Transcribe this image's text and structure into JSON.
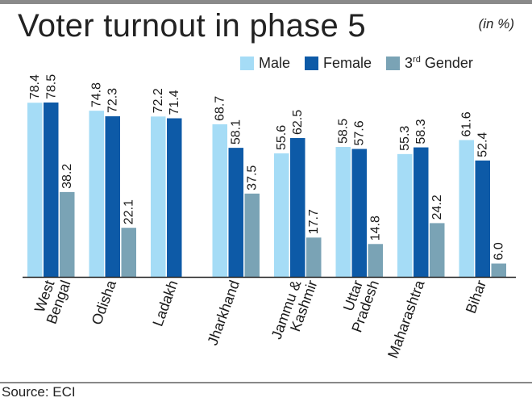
{
  "header": {
    "title": "Voter turnout in phase 5",
    "unit": "(in %)"
  },
  "legend": {
    "male": "Male",
    "female": "Female",
    "third_gender_prefix": "3",
    "third_gender_sup": "rd",
    "third_gender_suffix": " Gender"
  },
  "footer": {
    "source": "Source: ECI"
  },
  "colors": {
    "male": "#a5dcf6",
    "female": "#0d5aa7",
    "third": "#7aa3b5",
    "axis": "#222222"
  },
  "chart_data": {
    "type": "bar",
    "title": "Voter turnout in phase 5",
    "ylabel": "(in %)",
    "xlabel": "",
    "ylim": [
      0,
      78.5
    ],
    "grid": false,
    "legend_position": "top-right",
    "categories": [
      [
        "West",
        "Bengal"
      ],
      [
        "Odisha"
      ],
      [
        "Ladakh"
      ],
      [
        "Jharkhand"
      ],
      [
        "Jammu &",
        "Kashmir"
      ],
      [
        "Uttar",
        "Pradesh"
      ],
      [
        "Maharashtra"
      ],
      [
        "Bihar"
      ]
    ],
    "series": [
      {
        "name": "Male",
        "key": "male",
        "values": [
          78.4,
          74.8,
          72.2,
          68.7,
          55.6,
          58.5,
          55.3,
          61.6
        ],
        "labels": [
          "78.4",
          "74.8",
          "72.2",
          "68.7",
          "55.6",
          "58.5",
          "55.3",
          "61.6"
        ]
      },
      {
        "name": "Female",
        "key": "female",
        "values": [
          78.5,
          72.3,
          71.4,
          58.1,
          62.5,
          57.6,
          58.3,
          52.4
        ],
        "labels": [
          "78.5",
          "72.3",
          "71.4",
          "58.1",
          "62.5",
          "57.6",
          "58.3",
          "52.4"
        ]
      },
      {
        "name": "3rd Gender",
        "key": "third",
        "values": [
          38.2,
          22.1,
          null,
          37.5,
          17.7,
          14.8,
          24.2,
          6.0
        ],
        "labels": [
          "38.2",
          "22.1",
          null,
          "37.5",
          "17.7",
          "14.8",
          "24.2",
          "6.0"
        ]
      }
    ]
  }
}
